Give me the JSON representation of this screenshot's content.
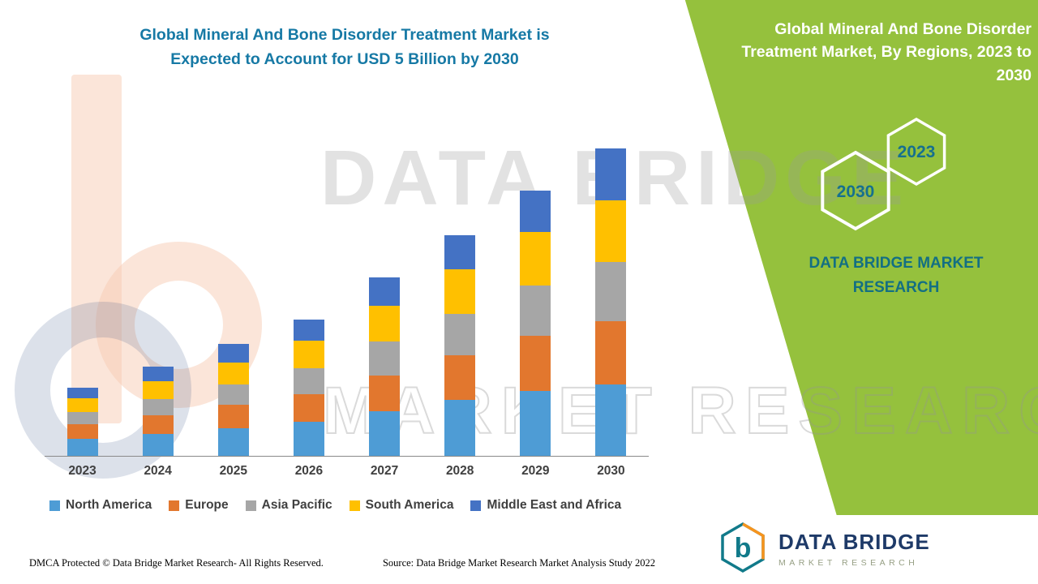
{
  "header": {
    "title_line1": "Global Mineral And Bone Disorder Treatment Market is",
    "title_line2": "Expected to Account for USD 5 Billion by 2030",
    "title_color": "#1679A5"
  },
  "side_panel": {
    "title": "Global Mineral And Bone Disorder Treatment Market, By Regions, 2023 to 2030",
    "hexagons": [
      {
        "year": "2023"
      },
      {
        "year": "2030"
      }
    ],
    "brand_text": "DATA BRIDGE MARKET RESEARCH",
    "background_color": "#95C13D",
    "text_color": "#FFFFFF",
    "year_text_color": "#16708F"
  },
  "watermark": {
    "line1": "DATA BRIDGE",
    "line2": "MARKET RESEARCH"
  },
  "chart_data": {
    "type": "bar",
    "stacked": true,
    "unit": "USD Billion",
    "title": "Global Mineral And Bone Disorder Treatment Market, By Regions, 2023 to 2030",
    "categories": [
      "2023",
      "2024",
      "2025",
      "2026",
      "2027",
      "2028",
      "2029",
      "2030"
    ],
    "series": [
      {
        "name": "North America",
        "color": "#4E9CD5",
        "values": [
          0.28,
          0.36,
          0.45,
          0.55,
          0.72,
          0.9,
          1.05,
          1.15
        ]
      },
      {
        "name": "Europe",
        "color": "#E2772E",
        "values": [
          0.23,
          0.3,
          0.37,
          0.45,
          0.58,
          0.72,
          0.88,
          1.02
        ]
      },
      {
        "name": "Asia Pacific",
        "color": "#A6A6A6",
        "values": [
          0.2,
          0.26,
          0.33,
          0.41,
          0.54,
          0.67,
          0.81,
          0.95
        ]
      },
      {
        "name": "South America",
        "color": "#FFC000",
        "values": [
          0.22,
          0.29,
          0.36,
          0.44,
          0.58,
          0.72,
          0.87,
          1.0
        ]
      },
      {
        "name": "Middle East and Africa",
        "color": "#4472C4",
        "values": [
          0.17,
          0.23,
          0.29,
          0.35,
          0.45,
          0.55,
          0.66,
          0.83
        ]
      }
    ],
    "totals": [
      1.1,
      1.44,
      1.8,
      2.2,
      2.87,
      3.56,
      4.27,
      4.95
    ],
    "ylim": [
      0,
      5.1
    ],
    "grid": false,
    "legend_position": "bottom",
    "xlabel": "",
    "ylabel": ""
  },
  "footer": {
    "dmca": "DMCA Protected © Data Bridge Market Research- All Rights Reserved.",
    "source": "Source: Data Bridge Market Research Market Analysis Study 2022"
  },
  "logo": {
    "name": "DATA BRIDGE",
    "subtitle": "MARKET RESEARCH",
    "letter": "b"
  }
}
